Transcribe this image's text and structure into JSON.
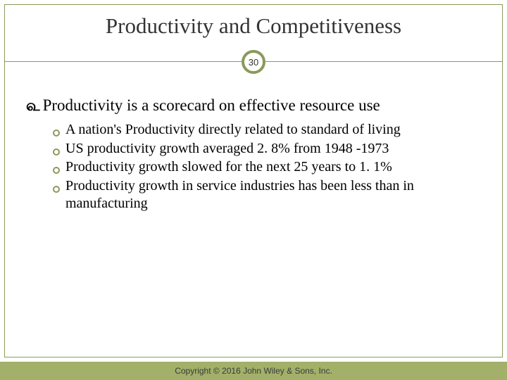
{
  "slide": {
    "title": "Productivity and Competitiveness",
    "page_number": "30",
    "main_bullet": "Productivity is a scorecard on effective resource use",
    "sub_bullets": [
      "A nation's Productivity directly related to  standard of living",
      "US productivity growth averaged 2. 8% from 1948 -1973",
      "Productivity growth slowed for the next 25 years to 1. 1%",
      "Productivity growth in service industries has been less than in manufacturing"
    ],
    "footer": "Copyright © 2016 John Wiley & Sons, Inc."
  },
  "colors": {
    "accent": "#8a9a5b",
    "footer_bg": "#a2b06a",
    "text": "#000000",
    "footer_text": "#3a3a3a"
  },
  "typography": {
    "title_size": 31,
    "main_size": 23,
    "sub_size": 20,
    "footer_size": 12
  }
}
